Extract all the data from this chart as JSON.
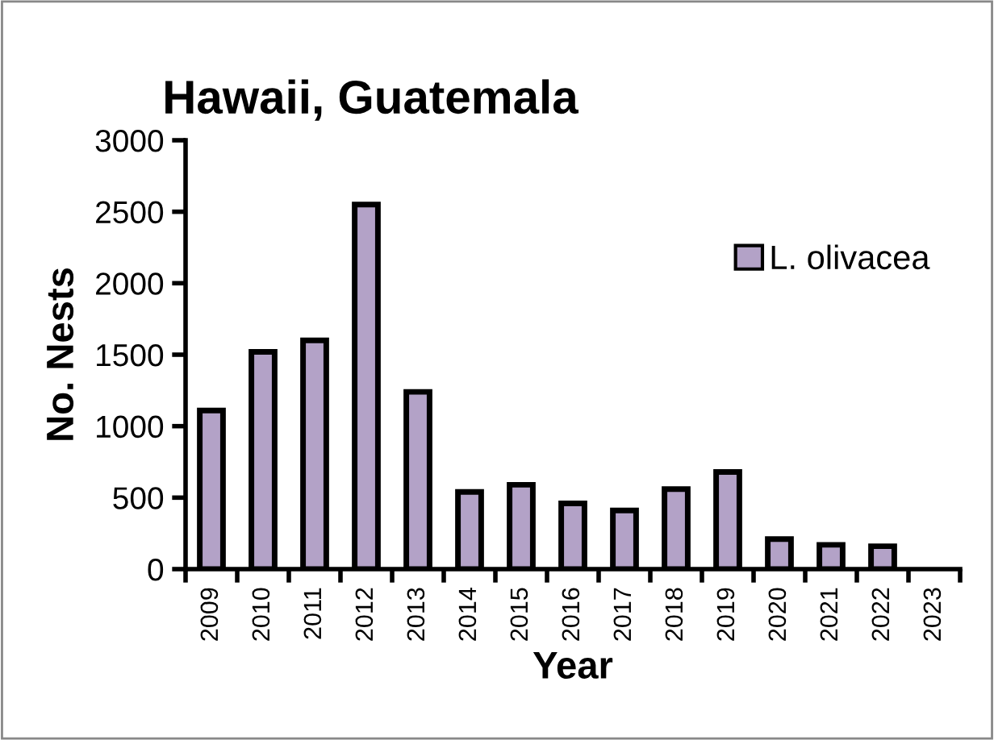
{
  "chart_data": {
    "type": "bar",
    "title": "Hawaii, Guatemala",
    "xlabel": "Year",
    "ylabel": "No. Nests",
    "categories": [
      "2009",
      "2010",
      "2011",
      "2012",
      "2013",
      "2014",
      "2015",
      "2016",
      "2017",
      "2018",
      "2019",
      "2020",
      "2021",
      "2022",
      "2023"
    ],
    "series": [
      {
        "name": "L. olivacea",
        "color": "#b3a2c7",
        "values": [
          1110,
          1520,
          1600,
          2550,
          1240,
          540,
          590,
          460,
          410,
          560,
          680,
          210,
          170,
          160,
          null
        ]
      }
    ],
    "ylim": [
      0,
      3000
    ],
    "yticks": [
      0,
      500,
      1000,
      1500,
      2000,
      2500,
      3000
    ],
    "grid": false,
    "legend": "right"
  }
}
